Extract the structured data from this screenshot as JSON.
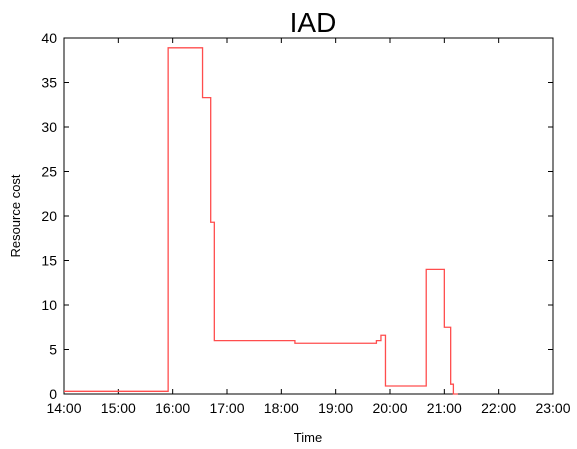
{
  "chart_data": {
    "type": "line",
    "title": "IAD",
    "xlabel": "Time",
    "ylabel": "Resource cost",
    "xlim": [
      "14:00",
      "23:00"
    ],
    "ylim": [
      0,
      40
    ],
    "x_ticks": [
      "14:00",
      "15:00",
      "16:00",
      "17:00",
      "18:00",
      "19:00",
      "20:00",
      "21:00",
      "22:00",
      "23:00"
    ],
    "y_ticks": [
      "0",
      "5",
      "10",
      "15",
      "20",
      "25",
      "30",
      "35",
      "40"
    ],
    "grid": false,
    "step": true,
    "series": [
      {
        "color": "#ff4d4d",
        "x": [
          "14:00",
          "15:55",
          "16:33",
          "16:42",
          "16:46",
          "18:15",
          "19:45",
          "19:50",
          "19:55",
          "20:00",
          "20:40",
          "21:00",
          "21:07",
          "21:10",
          "21:15"
        ],
        "y": [
          0.3,
          38.9,
          33.3,
          19.3,
          6.0,
          5.7,
          6.0,
          6.6,
          0.9,
          0.9,
          14.0,
          7.5,
          1.1,
          0.0,
          0.0
        ]
      }
    ]
  }
}
